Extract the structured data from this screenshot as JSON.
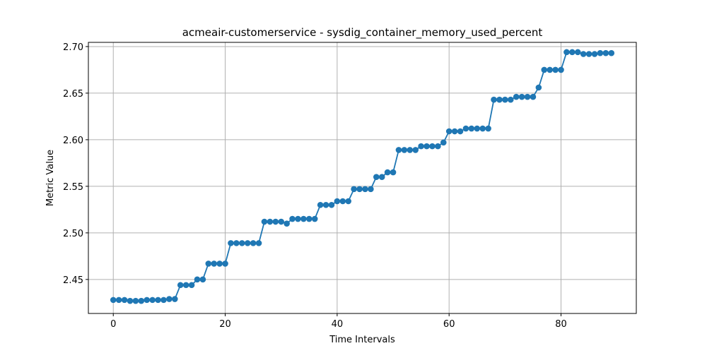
{
  "chart_data": {
    "type": "line",
    "title": "acmeair-customerservice - sysdig_container_memory_used_percent",
    "xlabel": "Time Intervals",
    "ylabel": "Metric Value",
    "xlim": [
      -4.45,
      93.45
    ],
    "ylim": [
      2.4135,
      2.7045
    ],
    "xticks": [
      0,
      20,
      40,
      60,
      80
    ],
    "yticks": [
      2.45,
      2.5,
      2.55,
      2.6,
      2.65,
      2.7
    ],
    "ytick_labels": [
      "2.45",
      "2.50",
      "2.55",
      "2.60",
      "2.65",
      "2.70"
    ],
    "grid": true,
    "legend": "none",
    "series": [
      {
        "color": "#1f77b4",
        "marker": "circle",
        "x": [
          0,
          1,
          2,
          3,
          4,
          5,
          6,
          7,
          8,
          9,
          10,
          11,
          12,
          13,
          14,
          15,
          16,
          17,
          18,
          19,
          20,
          21,
          22,
          23,
          24,
          25,
          26,
          27,
          28,
          29,
          30,
          31,
          32,
          33,
          34,
          35,
          36,
          37,
          38,
          39,
          40,
          41,
          42,
          43,
          44,
          45,
          46,
          47,
          48,
          49,
          50,
          51,
          52,
          53,
          54,
          55,
          56,
          57,
          58,
          59,
          60,
          61,
          62,
          63,
          64,
          65,
          66,
          67,
          68,
          69,
          70,
          71,
          72,
          73,
          74,
          75,
          76,
          77,
          78,
          79,
          80,
          81,
          82,
          83,
          84,
          85,
          86,
          87,
          88,
          89
        ],
        "values": [
          2.428,
          2.428,
          2.428,
          2.427,
          2.427,
          2.427,
          2.428,
          2.428,
          2.428,
          2.428,
          2.429,
          2.429,
          2.444,
          2.444,
          2.444,
          2.45,
          2.45,
          2.467,
          2.467,
          2.467,
          2.467,
          2.489,
          2.489,
          2.489,
          2.489,
          2.489,
          2.489,
          2.512,
          2.512,
          2.512,
          2.512,
          2.51,
          2.515,
          2.515,
          2.515,
          2.515,
          2.515,
          2.53,
          2.53,
          2.53,
          2.534,
          2.534,
          2.534,
          2.547,
          2.547,
          2.547,
          2.547,
          2.56,
          2.56,
          2.565,
          2.565,
          2.589,
          2.589,
          2.589,
          2.589,
          2.593,
          2.593,
          2.593,
          2.593,
          2.597,
          2.609,
          2.609,
          2.609,
          2.612,
          2.612,
          2.612,
          2.612,
          2.612,
          2.643,
          2.643,
          2.643,
          2.643,
          2.646,
          2.646,
          2.646,
          2.646,
          2.656,
          2.675,
          2.675,
          2.675,
          2.675,
          2.694,
          2.694,
          2.694,
          2.692,
          2.692,
          2.692,
          2.693,
          2.693,
          2.693
        ]
      }
    ]
  }
}
